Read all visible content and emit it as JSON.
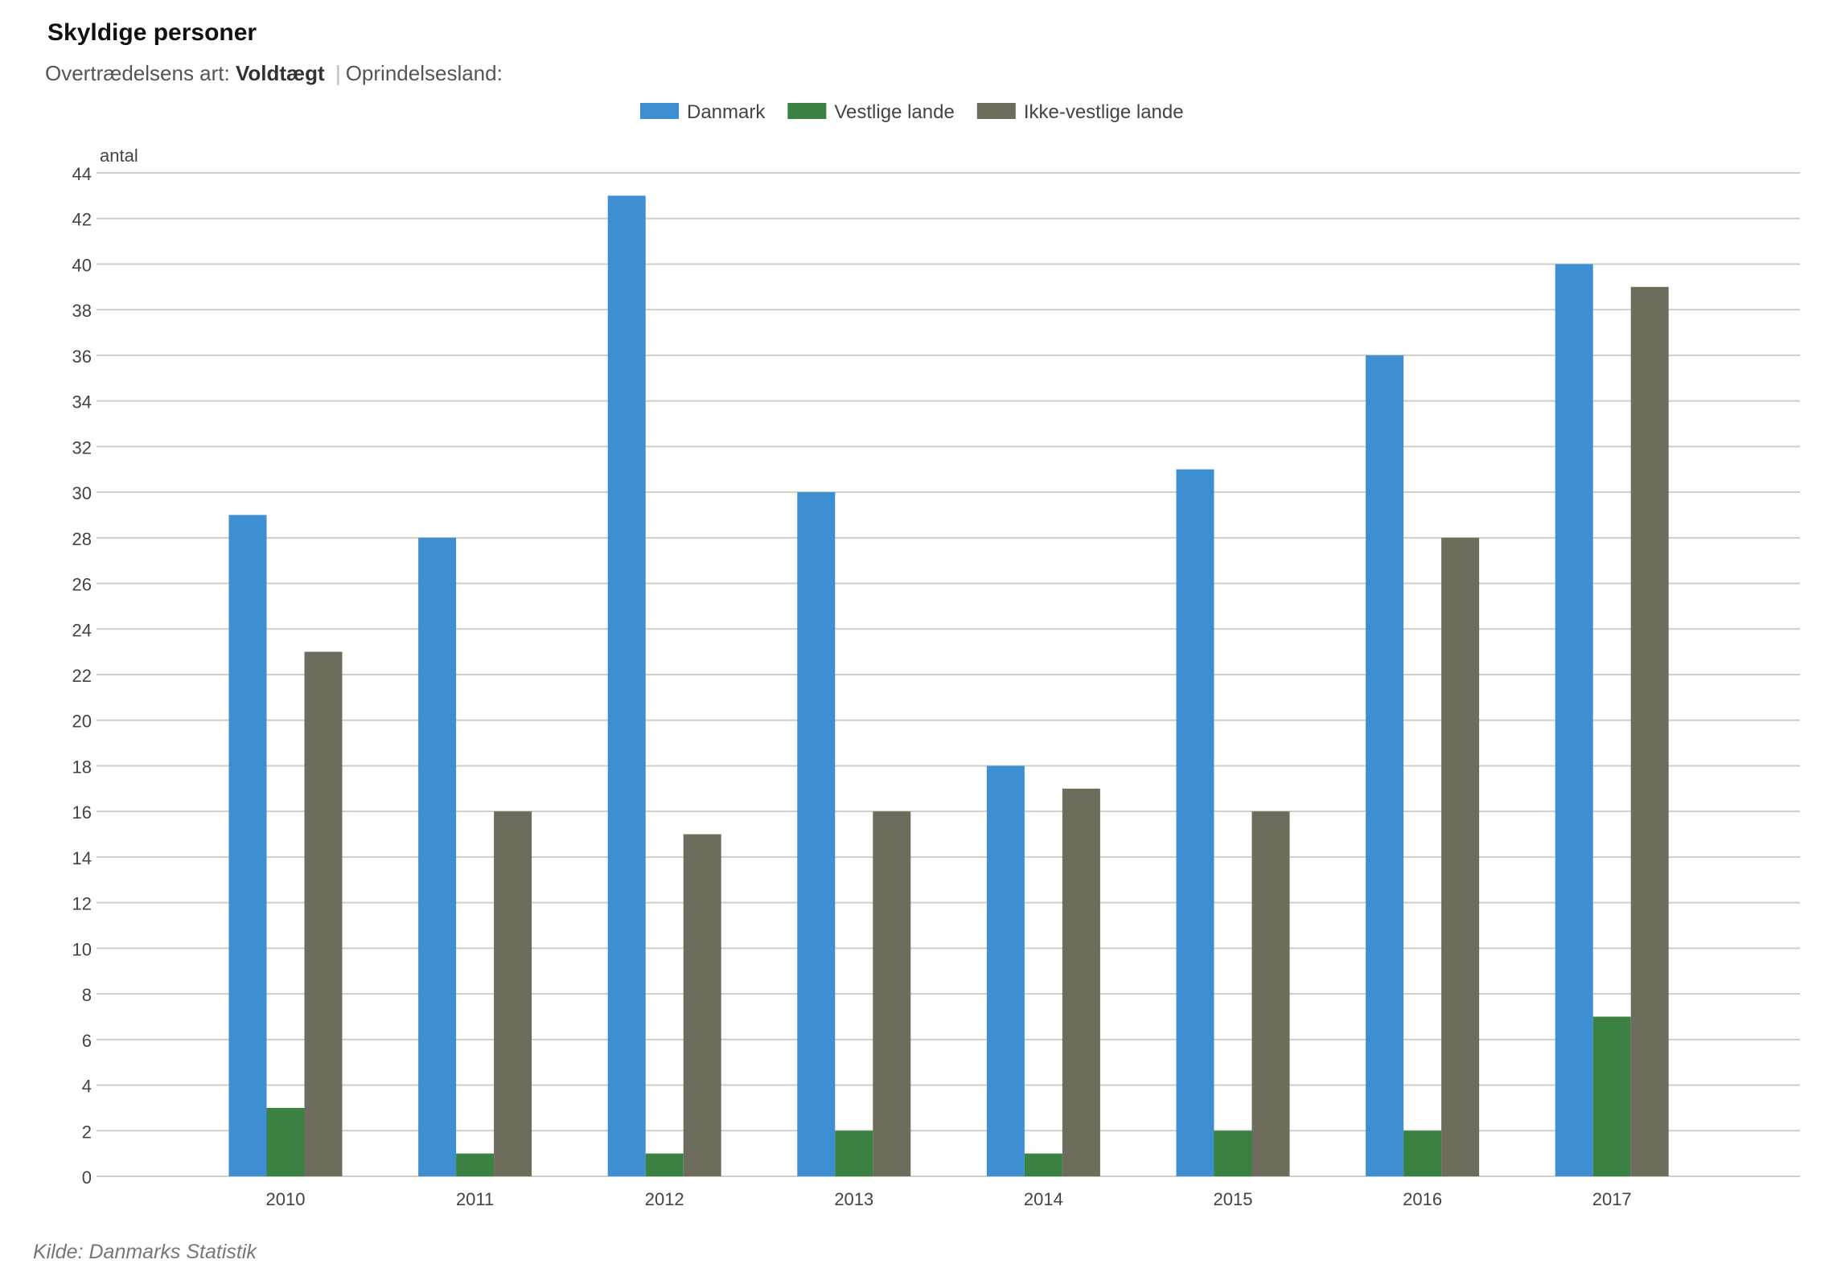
{
  "header": {
    "title": "Skyldige personer",
    "filter_label": "Overtrædelsens art:",
    "filter_value": "Voldtægt",
    "separator": "|",
    "origin_label": "Oprindelsesland:"
  },
  "source": "Kilde: Danmarks Statistik",
  "chart_data": {
    "type": "bar",
    "title": "Skyldige personer",
    "ylabel": "antal",
    "xlabel": "",
    "ylim": [
      0,
      44
    ],
    "yticks": [
      0,
      2,
      4,
      6,
      8,
      10,
      12,
      14,
      16,
      18,
      20,
      22,
      24,
      26,
      28,
      30,
      32,
      34,
      36,
      38,
      40,
      42,
      44
    ],
    "grid": true,
    "legend_position": "top-center",
    "categories": [
      "2010",
      "2011",
      "2012",
      "2013",
      "2014",
      "2015",
      "2016",
      "2017"
    ],
    "series": [
      {
        "name": "Danmark",
        "color": "#3d8fd1",
        "values": [
          29,
          28,
          43,
          30,
          18,
          31,
          36,
          40
        ]
      },
      {
        "name": "Vestlige lande",
        "color": "#3b8141",
        "values": [
          3,
          1,
          1,
          2,
          1,
          2,
          2,
          7
        ]
      },
      {
        "name": "Ikke-vestlige lande",
        "color": "#6e6c5c",
        "values": [
          23,
          16,
          15,
          16,
          17,
          16,
          28,
          39
        ]
      }
    ]
  }
}
